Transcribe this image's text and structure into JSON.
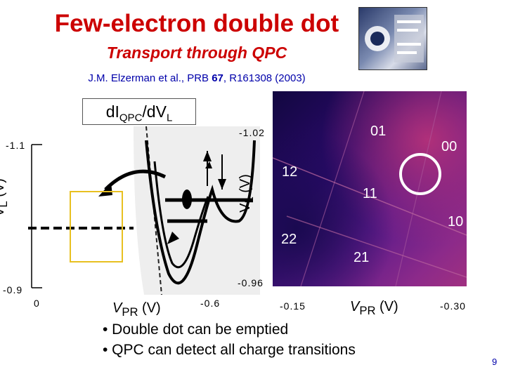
{
  "title": "Few-electron double dot",
  "subtitle": "Transport through QPC",
  "reference": {
    "prefix": "J.M. Elzerman et al., PRB ",
    "volume": "67",
    "suffix": ", R161308 (2003)"
  },
  "plot_label": {
    "main": "dI",
    "sub": "QPC",
    "sep": "/dV",
    "sub2": "L"
  },
  "left_axis": {
    "y_top": "-1.1",
    "y_bottom": "-0.9",
    "ylabel_main": "V",
    "ylabel_sub": "L",
    "ylabel_unit": " (V)"
  },
  "bottom_axis_left": {
    "x_left": "0",
    "x_right": "-0.6",
    "xlabel_main": "V",
    "xlabel_sub": "PR",
    "xlabel_unit": " (V)"
  },
  "right_axis": {
    "y_top": "-1.02",
    "y_bottom": "-0.96",
    "ylabel_main": "V",
    "ylabel_sub": "L",
    "ylabel_unit": " (V)"
  },
  "bottom_axis_right": {
    "x_left": "-0.15",
    "x_right": "-0.30",
    "xlabel_main": "V",
    "xlabel_sub": "PR",
    "xlabel_unit": " (V)"
  },
  "region_labels": {
    "r01": "01",
    "r00": "00",
    "r12": "12",
    "r11": "11",
    "r10": "10",
    "r22": "22",
    "r21": "21"
  },
  "bullets": [
    "• Double dot can be emptied",
    "• QPC can detect all charge transitions"
  ],
  "page_number": "9",
  "colors": {
    "title": "#cc0000",
    "reference": "#0000aa",
    "highlight_box": "#e8c020",
    "circle": "#ffffff"
  }
}
